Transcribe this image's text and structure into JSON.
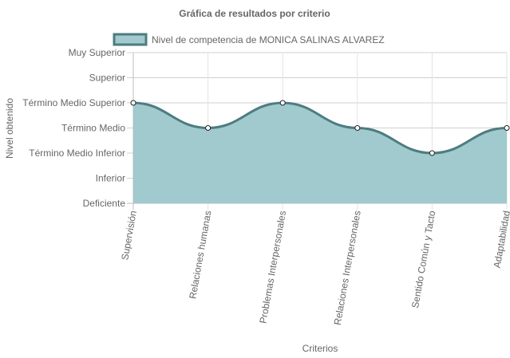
{
  "chart_data": {
    "type": "area",
    "title": "Gráfica de resultados por criterio",
    "xlabel": "Criterios",
    "ylabel": "Nivel obtenido",
    "y_levels": [
      "Deficiente",
      "Inferior",
      "Término Medio Inferior",
      "Término Medio",
      "Término Medio Superior",
      "Superior",
      "Muy Superior"
    ],
    "categories": [
      "Supervisión",
      "Relaciones humanas",
      "Problemas Interpersonales",
      "Relaciones Interpersonales",
      "Sentido Común y Tacto",
      "Adaptabilidad"
    ],
    "series": [
      {
        "name": "Nivel de competencia de MONICA SALINAS ALVAREZ",
        "values": [
          "Término Medio Superior",
          "Término Medio",
          "Término Medio Superior",
          "Término Medio",
          "Término Medio Inferior",
          "Término Medio"
        ],
        "fill_color": "#a0cacd",
        "line_color": "#4e7c80"
      }
    ],
    "legend_position": "top",
    "grid": true
  }
}
